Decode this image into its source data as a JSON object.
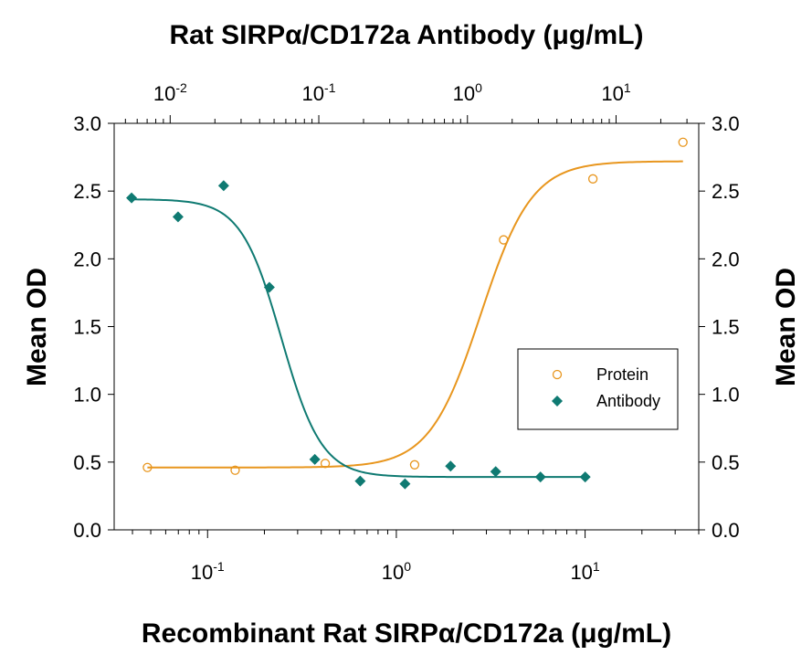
{
  "chart_data": {
    "type": "scatter",
    "title": "Rat SIRPα/CD172a  Antibody (μg/mL)",
    "xlabel": "Recombinant Rat SIRPα/CD172a (μg/mL)",
    "ylabel": "Mean OD",
    "ylabel_right": "Mean OD",
    "x_scale": "log",
    "xlim": [
      0.032,
      40
    ],
    "ylim": [
      0,
      3.0
    ],
    "y_ticks": [
      "0.0",
      "0.5",
      "1.0",
      "1.5",
      "2.0",
      "2.5",
      "3.0"
    ],
    "x_bottom_ticks": [
      {
        "base": "10",
        "exp": "-1",
        "value": 0.1
      },
      {
        "base": "10",
        "exp": "0",
        "value": 1
      },
      {
        "base": "10",
        "exp": "1",
        "value": 10
      }
    ],
    "x_top_scale": "log",
    "x_top_lim": [
      0.0042,
      36
    ],
    "x_top_ticks": [
      {
        "base": "10",
        "exp": "-2",
        "value": 0.01
      },
      {
        "base": "10",
        "exp": "-1",
        "value": 0.1
      },
      {
        "base": "10",
        "exp": "0",
        "value": 1
      },
      {
        "base": "10",
        "exp": "1",
        "value": 10
      }
    ],
    "legend_position": "right",
    "grid": false,
    "series": [
      {
        "name": "Protein",
        "color": "#e8961e",
        "marker": "open-circle",
        "axis": "bottom",
        "x": [
          0.048,
          0.14,
          0.42,
          1.25,
          3.7,
          11.0,
          33.0
        ],
        "y": [
          0.46,
          0.44,
          0.49,
          0.48,
          2.14,
          2.59,
          2.86
        ],
        "fit": {
          "model": "4PL",
          "bottom": 0.46,
          "top": 2.72,
          "ec50": 2.8,
          "hill": 3.2
        }
      },
      {
        "name": "Antibody",
        "color": "#0f7a72",
        "marker": "filled-diamond",
        "axis": "top",
        "x": [
          0.0055,
          0.0113,
          0.0229,
          0.0465,
          0.094,
          0.19,
          0.38,
          0.77,
          1.55,
          3.1,
          6.2
        ],
        "y": [
          2.45,
          2.31,
          2.54,
          1.79,
          0.52,
          0.36,
          0.34,
          0.47,
          0.43,
          0.39,
          0.39
        ],
        "fit": {
          "model": "4PL",
          "bottom": 0.39,
          "top": 2.44,
          "ec50": 0.056,
          "hill": -3.2
        }
      }
    ]
  }
}
